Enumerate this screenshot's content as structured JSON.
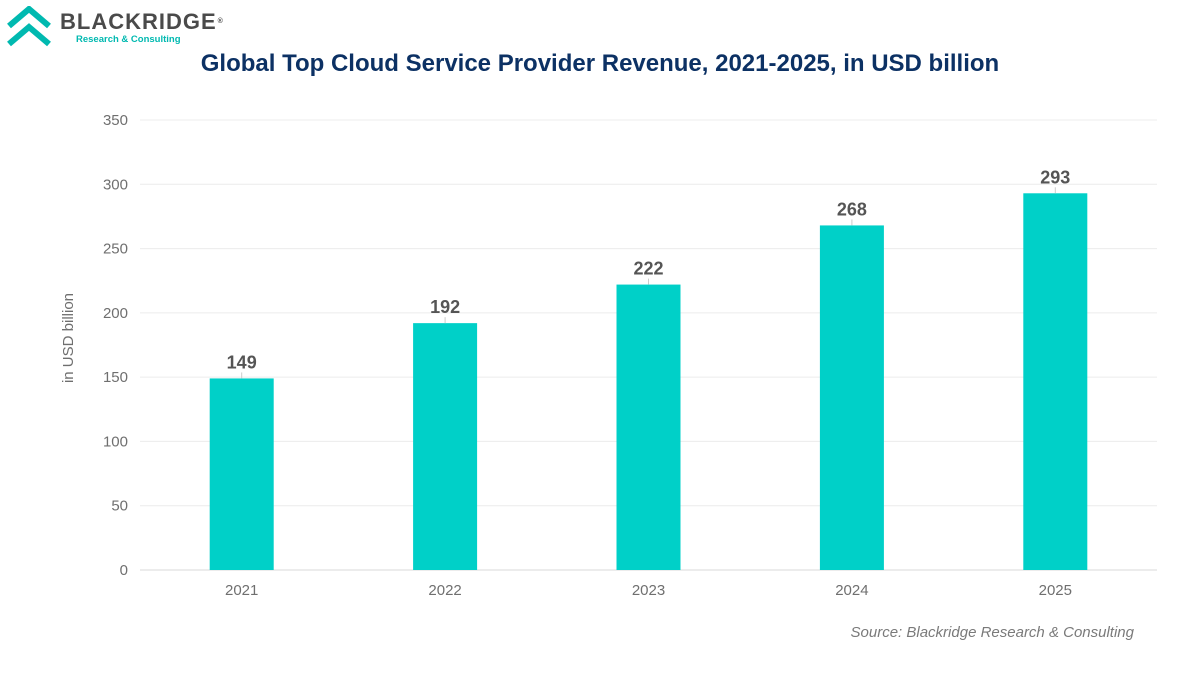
{
  "logo": {
    "name": "BLACKRIDGE",
    "registered": "®",
    "tagline": "Research & Consulting"
  },
  "colors": {
    "bar": "#00d0c8",
    "title": "#0c3164",
    "logo_teal": "#00b9b0"
  },
  "chart_data": {
    "type": "bar",
    "title": "Global Top Cloud Service Provider Revenue, 2021-2025, in USD billion",
    "xlabel": "",
    "ylabel": "in USD billion",
    "categories": [
      "2021",
      "2022",
      "2023",
      "2024",
      "2025"
    ],
    "values": [
      149,
      192,
      222,
      268,
      293
    ],
    "ylim": [
      0,
      350
    ],
    "yticks": [
      0,
      50,
      100,
      150,
      200,
      250,
      300,
      350
    ],
    "grid": true,
    "legend": "none"
  },
  "source": "Source: Blackridge Research & Consulting"
}
